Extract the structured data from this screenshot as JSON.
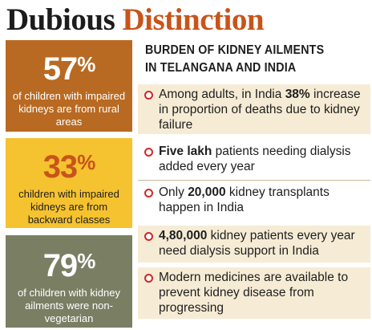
{
  "title": {
    "word1": "Dubious",
    "word2": "Distinction"
  },
  "cards": [
    {
      "percent": "57",
      "sign": "%",
      "description": "of children with impaired kidneys are from rural areas",
      "color": "#b86a22"
    },
    {
      "percent": "33",
      "sign": "%",
      "description": "children with impaired kidneys are from backward classes",
      "color": "#f5c230"
    },
    {
      "percent": "79",
      "sign": "%",
      "description": "of children with kidney ailments were non-vegetarian",
      "color": "#7a7f64"
    }
  ],
  "heading": {
    "line1": "BURDEN OF KIDNEY AILMENTS",
    "line2": "IN TELANGANA AND INDIA"
  },
  "facts": [
    {
      "pre": "Among adults, in India ",
      "bold": "38%",
      "post": " increase in proportion of deaths due to kidney failure"
    },
    {
      "pre": "",
      "bold": "Five lakh",
      "post": " patients needing dialysis added every year"
    },
    {
      "pre": "Only ",
      "bold": "20,000",
      "post": " kidney transplants happen in India"
    },
    {
      "pre": "",
      "bold": "4,80,000",
      "post": " kidney patients every year need dialysis support in India"
    },
    {
      "pre": "",
      "bold": "",
      "post": "Modern medicines are available to prevent kidney disease from progressing"
    }
  ],
  "colors": {
    "accent": "#c8541a",
    "bullet": "#d02828",
    "fact_background": "#f6ecd5"
  }
}
